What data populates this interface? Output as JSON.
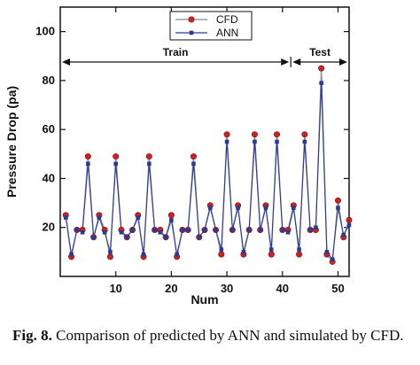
{
  "chart_data": {
    "type": "line",
    "xlabel": "Num",
    "ylabel": "Pressure Drop (pa)",
    "xlim": [
      0,
      52
    ],
    "ylim": [
      0,
      110
    ],
    "xticks": [
      10,
      20,
      30,
      40,
      50
    ],
    "yticks": [
      20,
      40,
      60,
      80,
      100
    ],
    "x": [
      1,
      2,
      3,
      4,
      5,
      6,
      7,
      8,
      9,
      10,
      11,
      12,
      13,
      14,
      15,
      16,
      17,
      18,
      19,
      20,
      21,
      22,
      23,
      24,
      25,
      26,
      27,
      28,
      29,
      30,
      31,
      32,
      33,
      34,
      35,
      36,
      37,
      38,
      39,
      40,
      41,
      42,
      43,
      44,
      45,
      46,
      47,
      48,
      49,
      50,
      51,
      52
    ],
    "series": [
      {
        "name": "CFD",
        "color": "#cc2222",
        "marker": "circle",
        "values": [
          25,
          8,
          19,
          19,
          49,
          16,
          25,
          19,
          8,
          49,
          19,
          16,
          19,
          25,
          8,
          49,
          19,
          19,
          16,
          25,
          8,
          19,
          19,
          49,
          16,
          19,
          29,
          19,
          9,
          58,
          19,
          29,
          9,
          19,
          58,
          19,
          29,
          9,
          58,
          19,
          19,
          29,
          9,
          58,
          19,
          19,
          85,
          9,
          6,
          31,
          16,
          23
        ]
      },
      {
        "name": "ANN",
        "color": "#2a3a9a",
        "marker": "square",
        "values": [
          24,
          9,
          19,
          18,
          46,
          16,
          24,
          18,
          10,
          46,
          18,
          16,
          19,
          24,
          9,
          46,
          19,
          18,
          16,
          23,
          9,
          19,
          19,
          46,
          16,
          19,
          28,
          19,
          11,
          55,
          19,
          28,
          10,
          19,
          55,
          19,
          28,
          11,
          55,
          19,
          18,
          28,
          11,
          55,
          19,
          20,
          79,
          10,
          7,
          28,
          17,
          21
        ]
      }
    ],
    "legend": {
      "position": "top-center",
      "entries": [
        "CFD",
        "ANN"
      ]
    },
    "annotations": [
      {
        "label": "Train",
        "x_range": [
          0,
          41.5
        ]
      },
      {
        "label": "Test",
        "x_range": [
          41.5,
          52
        ]
      }
    ],
    "grid": false
  },
  "caption": {
    "label": "Fig. 8.",
    "text": " Comparison of   predicted by ANN and simulated by CFD."
  }
}
